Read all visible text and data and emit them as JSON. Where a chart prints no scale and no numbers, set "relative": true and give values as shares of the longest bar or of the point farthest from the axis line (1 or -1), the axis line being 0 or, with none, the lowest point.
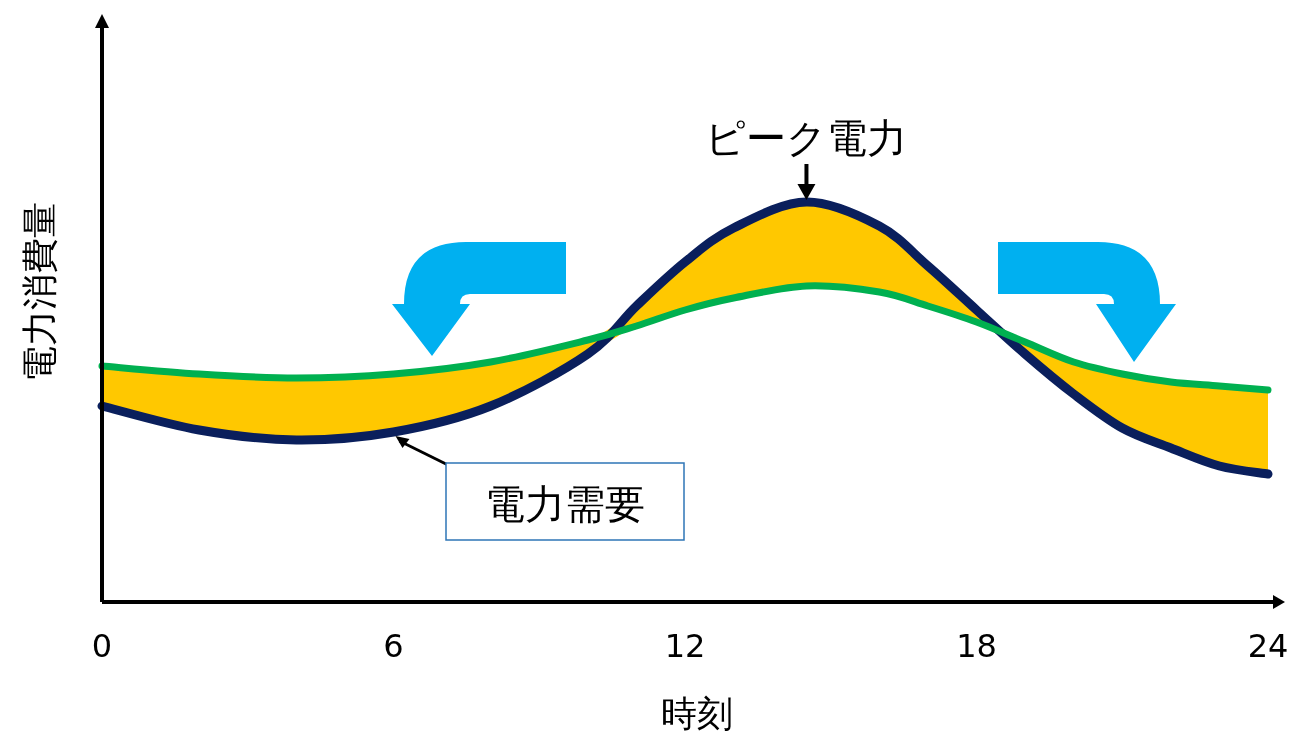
{
  "chart_data": {
    "type": "line",
    "relative": true,
    "xlabel": "時刻",
    "ylabel": "電力消費量",
    "x": [
      0,
      2,
      4,
      6,
      8,
      10,
      11,
      12,
      13,
      14.5,
      16,
      17,
      18,
      19,
      20,
      21,
      22,
      23,
      24
    ],
    "xlim": [
      0,
      24.35
    ],
    "xticks": [
      0,
      6,
      12,
      18,
      24
    ],
    "grid": false,
    "marker": "none",
    "line_style": "solid",
    "series": [
      {
        "name": "電力需要",
        "color": "#0a1f5c",
        "values": [
          0.49,
          0.43,
          0.405,
          0.425,
          0.49,
          0.62,
          0.74,
          0.85,
          0.935,
          1.0,
          0.94,
          0.84,
          0.73,
          0.62,
          0.52,
          0.435,
          0.385,
          0.34,
          0.32
        ],
        "lower": [
          0.49,
          0.43,
          0.405,
          0.425,
          0.49,
          0.62,
          0.69,
          0.73,
          0.76,
          0.79,
          0.775,
          0.74,
          0.7,
          0.62,
          0.52,
          0.435,
          0.385,
          0.34,
          0.32
        ],
        "upper": [
          0.59,
          0.57,
          0.56,
          0.57,
          0.6,
          0.655,
          0.74,
          0.85,
          0.935,
          1.0,
          0.94,
          0.84,
          0.73,
          0.65,
          0.6,
          0.57,
          0.55,
          0.54,
          0.53
        ]
      },
      {
        "color": "#00b050",
        "values": [
          0.59,
          0.57,
          0.56,
          0.57,
          0.6,
          0.655,
          0.69,
          0.73,
          0.76,
          0.79,
          0.775,
          0.74,
          0.7,
          0.65,
          0.6,
          0.57,
          0.55,
          0.54,
          0.53
        ]
      }
    ],
    "annotations": [
      {
        "text": "ピーク電力",
        "x": 14.5,
        "y": 1.0
      }
    ]
  }
}
